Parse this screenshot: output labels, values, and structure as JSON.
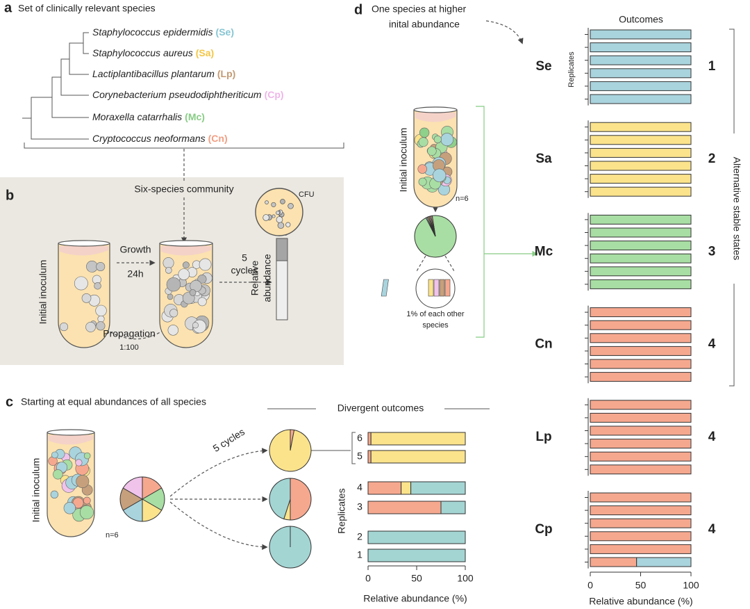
{
  "panel_a": {
    "letter": "a",
    "title": "Set of clinically relevant species",
    "species": [
      {
        "name": "Staphylococcus epidermidis",
        "abbr": "(Se)",
        "color": "#86c5d3"
      },
      {
        "name": "Staphylococcus aureus",
        "abbr": "(Sa)",
        "color": "#f3c646"
      },
      {
        "name": "Lactiplantibacillus plantarum",
        "abbr": "(Lp)",
        "color": "#c39a72"
      },
      {
        "name": "Corynebacterium pseudodiphtheriticum",
        "abbr": "(Cp)",
        "color": "#eeb5e8"
      },
      {
        "name": "Moraxella catarrhalis",
        "abbr": "(Mc)",
        "color": "#88cc85"
      },
      {
        "name": "Cryptococcus neoformans",
        "abbr": "(Cn)",
        "color": "#f19e82"
      }
    ]
  },
  "panel_b": {
    "letter": "b",
    "community": "Six-species community",
    "cfu": "CFU",
    "inoculum": "Initial inoculum",
    "growth": "Growth",
    "duration": "24h",
    "cycles": [
      "5",
      "cycles"
    ],
    "abundance": [
      "Relative",
      "abundance"
    ],
    "propagation": "Propagation",
    "dilution": "1:100"
  },
  "panel_c": {
    "letter": "c",
    "title": "Starting at equal abundances of all species",
    "inoculum": "Initial inoculum",
    "n": "n=6",
    "cycles": "5 cycles",
    "outcomes": "Divergent outcomes",
    "initial_pie": {
      "values": [
        1,
        1,
        1,
        1,
        1,
        1
      ],
      "colors": [
        "#f6a88f",
        "#a8dea3",
        "#fbe38c",
        "#a9d4de",
        "#c6a07c",
        "#f0c3ea"
      ]
    },
    "outcome_pies": [
      {
        "values": [
          3,
          97
        ],
        "colors": [
          "#f6a88f",
          "#fbe38c"
        ]
      },
      {
        "values": [
          50,
          5,
          45
        ],
        "colors": [
          "#f6a88f",
          "#fbe38c",
          "#a3d5d3"
        ]
      },
      {
        "values": [
          100
        ],
        "colors": [
          "#a3d5d3"
        ]
      }
    ]
  },
  "panel_d": {
    "letter": "d",
    "title": [
      "One species at higher",
      "inital abundance"
    ],
    "inoculum": "Initial inoculum",
    "n": "n=6",
    "note": [
      "1% of each other",
      "species"
    ],
    "pie": {
      "values": [
        95,
        1,
        1,
        1,
        1,
        1
      ],
      "colors": [
        "#a8dea3",
        "#a9d4de",
        "#fbe38c",
        "#c6a07c",
        "#f0c3ea",
        "#f6a88f"
      ]
    }
  },
  "chart_data": [
    {
      "type": "bar",
      "xlabel": "Relative abundance (%)",
      "ylabel": "Replicates",
      "categories": [
        "1",
        "2",
        "3",
        "4",
        "5",
        "6"
      ],
      "series": [
        {
          "color": "#f6a88f",
          "values": [
            0,
            0,
            75,
            34,
            3,
            3
          ]
        },
        {
          "color": "#fbe38c",
          "values": [
            0,
            0,
            0,
            10,
            97,
            97
          ]
        },
        {
          "color": "#a3d5d3",
          "values": [
            100,
            100,
            25,
            56,
            0,
            0
          ]
        }
      ],
      "xlim": [
        0,
        100
      ],
      "xticks": [
        0,
        50,
        100
      ]
    },
    {
      "type": "bar",
      "title": "Outcomes",
      "xlabel": "Relative abundance (%)",
      "ylabel": "Replicates",
      "side_label": "Alternative stable states",
      "xlim": [
        0,
        100
      ],
      "xticks": [
        0,
        50,
        100
      ],
      "groups": [
        {
          "name": "Se",
          "color": "#86c5d3",
          "state": "1",
          "state_color": "#86c5d3",
          "series": [
            {
              "color": "#a9d4de",
              "values": [
                100,
                100,
                100,
                100,
                100,
                100
              ]
            }
          ]
        },
        {
          "name": "Sa",
          "color": "#f3c646",
          "state": "2",
          "state_color": "#f3c646",
          "series": [
            {
              "color": "#fbe38c",
              "values": [
                100,
                100,
                100,
                100,
                100,
                100
              ]
            }
          ]
        },
        {
          "name": "Mc",
          "color": "#88cc85",
          "state": "3",
          "state_color": "#88cc85",
          "series": [
            {
              "color": "#a8dea3",
              "values": [
                100,
                100,
                100,
                100,
                100,
                100
              ]
            }
          ]
        },
        {
          "name": "Cn",
          "color": "#f19e82",
          "state": "4",
          "state_color": "#f19e82",
          "series": [
            {
              "color": "#f6a88f",
              "values": [
                100,
                100,
                100,
                100,
                100,
                100
              ]
            }
          ]
        },
        {
          "name": "Lp",
          "color": "#c39a72",
          "state": "4",
          "state_color": "#f19e82",
          "series": [
            {
              "color": "#f6a88f",
              "values": [
                100,
                100,
                100,
                100,
                100,
                100
              ]
            }
          ]
        },
        {
          "name": "Cp",
          "color": "#eeb5e8",
          "state": "4",
          "state_color": "#f19e82",
          "series": [
            {
              "color": "#f6a88f",
              "values": [
                46,
                100,
                100,
                100,
                100,
                100
              ]
            },
            {
              "color": "#a9d4de",
              "values": [
                54,
                0,
                0,
                0,
                0,
                0
              ]
            }
          ]
        }
      ]
    }
  ]
}
